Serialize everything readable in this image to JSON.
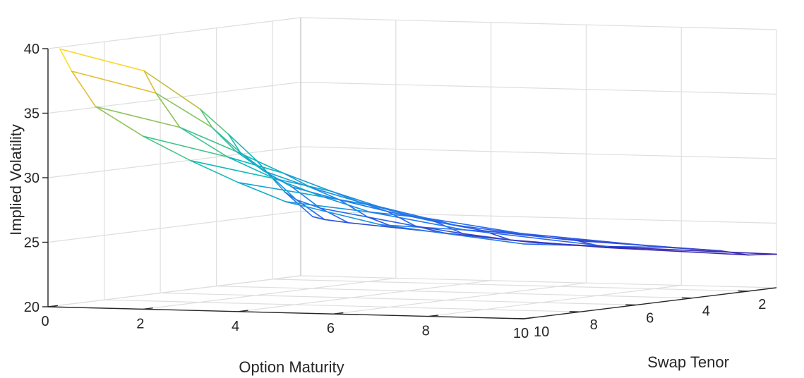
{
  "chart_data": {
    "type": "surface",
    "xlabel": "Option Maturity",
    "ylabel": "Swap Tenor",
    "zlabel": "Implied Volatility",
    "xlim": [
      0,
      10
    ],
    "ylim": [
      1,
      10
    ],
    "zlim": [
      20,
      40
    ],
    "x_ticks": [
      0,
      2,
      4,
      6,
      8,
      10
    ],
    "y_ticks": [
      2,
      4,
      6,
      8,
      10
    ],
    "z_ticks": [
      20,
      25,
      30,
      35,
      40
    ],
    "grid": true,
    "colormap": "parula",
    "option_maturity": [
      0.25,
      0.5,
      1,
      2,
      3,
      4,
      5,
      7,
      10
    ],
    "swap_tenor": [
      1,
      2,
      3,
      4,
      5,
      7,
      10
    ],
    "implied_volatility": [
      [
        24.6,
        26.8,
        29.5,
        31.8,
        34.0,
        37.5,
        40.0
      ],
      [
        24.4,
        26.2,
        28.5,
        30.4,
        32.6,
        35.8,
        38.3
      ],
      [
        24.2,
        25.6,
        27.5,
        29.0,
        30.8,
        33.2,
        35.6
      ],
      [
        23.9,
        25.0,
        26.6,
        27.8,
        29.2,
        31.0,
        33.4
      ],
      [
        23.6,
        24.4,
        25.8,
        26.8,
        27.9,
        29.4,
        31.6
      ],
      [
        23.3,
        23.9,
        25.1,
        25.9,
        26.8,
        28.1,
        30.0
      ],
      [
        23.0,
        23.5,
        24.5,
        25.2,
        26.0,
        27.0,
        28.6
      ],
      [
        22.8,
        23.1,
        23.9,
        24.4,
        25.0,
        25.8,
        27.0
      ],
      [
        22.6,
        22.8,
        23.4,
        23.8,
        24.2,
        24.8,
        25.8
      ]
    ]
  }
}
